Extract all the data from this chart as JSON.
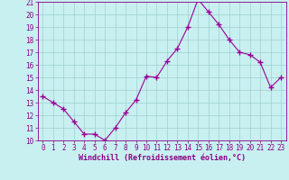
{
  "x": [
    0,
    1,
    2,
    3,
    4,
    5,
    6,
    7,
    8,
    9,
    10,
    11,
    12,
    13,
    14,
    15,
    16,
    17,
    18,
    19,
    20,
    21,
    22,
    23
  ],
  "y": [
    13.5,
    13.0,
    12.5,
    11.5,
    10.5,
    10.5,
    10.0,
    11.0,
    12.2,
    13.2,
    15.1,
    15.0,
    16.3,
    17.3,
    19.0,
    21.2,
    20.2,
    19.2,
    18.0,
    17.0,
    16.8,
    16.2,
    14.2,
    15.0
  ],
  "line_color": "#990099",
  "marker": "+",
  "marker_size": 4,
  "marker_lw": 1.0,
  "bg_color": "#c8f0f0",
  "grid_color": "#a0d0d0",
  "xlabel": "Windchill (Refroidissement éolien,°C)",
  "ylim": [
    10,
    21
  ],
  "xlim": [
    -0.5,
    23.5
  ],
  "yticks": [
    10,
    11,
    12,
    13,
    14,
    15,
    16,
    17,
    18,
    19,
    20,
    21
  ],
  "xticks": [
    0,
    1,
    2,
    3,
    4,
    5,
    6,
    7,
    8,
    9,
    10,
    11,
    12,
    13,
    14,
    15,
    16,
    17,
    18,
    19,
    20,
    21,
    22,
    23
  ],
  "tick_color": "#880088",
  "label_color": "#880088",
  "spine_color": "#880088",
  "tick_fontsize": 5.5,
  "xlabel_fontsize": 6.0
}
